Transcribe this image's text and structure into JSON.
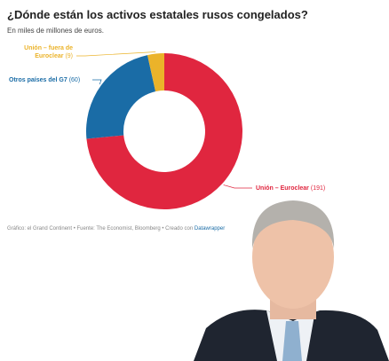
{
  "chart_data": {
    "type": "pie",
    "title": "¿Dónde están los activos estatales rusos congelados?",
    "subtitle": "En miles de millones de euros.",
    "categories": [
      "Unión – Euroclear",
      "Otros países del G7",
      "Unión – fuera de Euroclear"
    ],
    "values": [
      191,
      60,
      9
    ],
    "value_labels": [
      "(191)",
      "(60)",
      "(9)"
    ],
    "colors": [
      "#e0263f",
      "#1a6ca6",
      "#ebb32a"
    ],
    "source": "Gráfico: el Grand Continent • Fuente: The Economist, Bloomberg • Creado con",
    "credit": "Datawrapper"
  }
}
